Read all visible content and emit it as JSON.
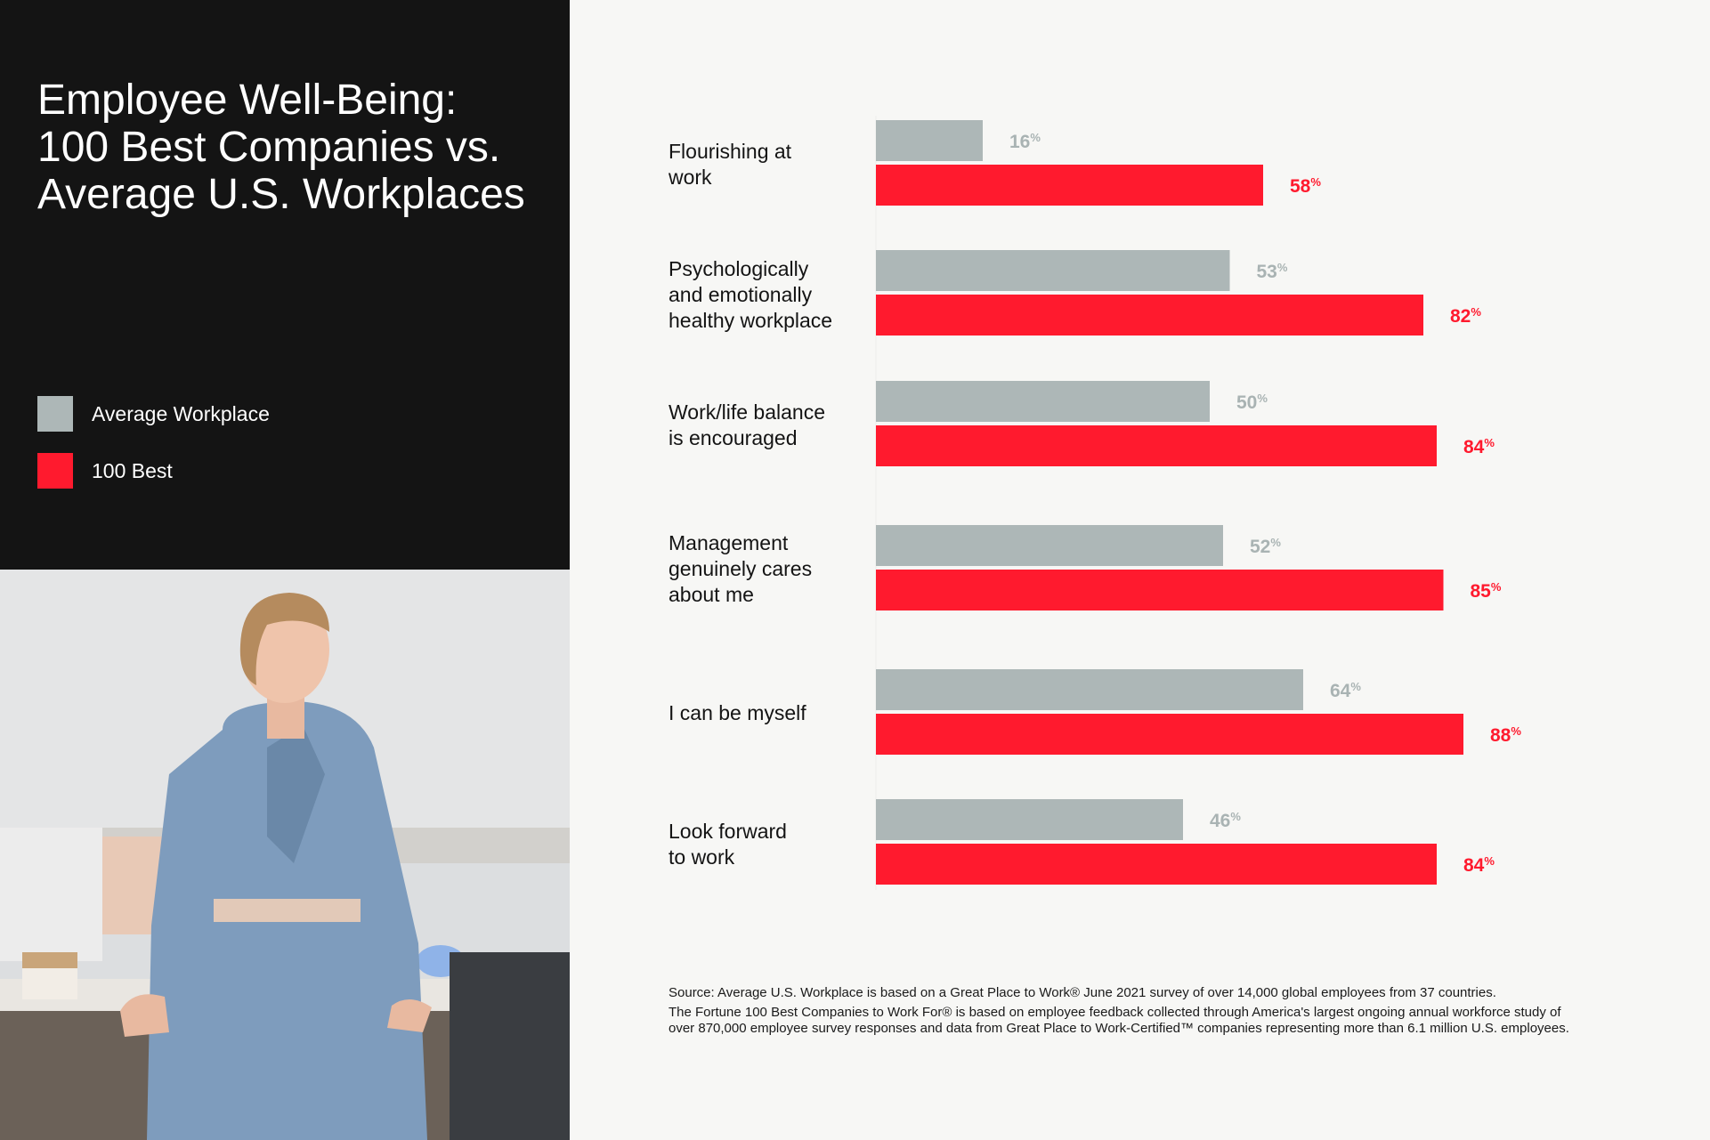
{
  "title": "Employee Well-Being:\n100 Best Companies vs.\nAverage U.S. Workplaces",
  "legend": [
    {
      "label": "Average Workplace",
      "color": "#adb7b7"
    },
    {
      "label": "100 Best",
      "color": "#ff1a2e"
    }
  ],
  "chart_data": {
    "type": "bar",
    "orientation": "horizontal",
    "title": "Employee Well-Being: 100 Best Companies vs. Average U.S. Workplaces",
    "categories": [
      "Flourishing at\nwork",
      "Psychologically\nand emotionally\nhealthy workplace",
      "Work/life balance\nis encouraged",
      "Management\ngenuinely cares\nabout me",
      "I can be myself",
      "Look forward\nto work"
    ],
    "series": [
      {
        "name": "Average Workplace",
        "color": "#adb7b7",
        "label_color": "#a9b3b3",
        "values": [
          16,
          53,
          50,
          52,
          64,
          46
        ]
      },
      {
        "name": "100 Best",
        "color": "#ff1a2e",
        "label_color": "#ff1a2e",
        "values": [
          58,
          82,
          84,
          85,
          88,
          84
        ]
      }
    ],
    "value_suffix": "%",
    "xlim": [
      0,
      100
    ],
    "grid": false,
    "legend_position": "left"
  },
  "source": {
    "line1": "Source: Average U.S. Workplace is based on a Great Place to Work® June 2021 survey of over 14,000 global employees from 37 countries.",
    "line2": "The Fortune 100 Best Companies to Work For® is based on employee feedback collected through America's largest ongoing annual workforce study of over 870,000 employee survey responses and data from Great Place to Work-Certified™ companies representing more than 6.1 million U.S. employees."
  }
}
